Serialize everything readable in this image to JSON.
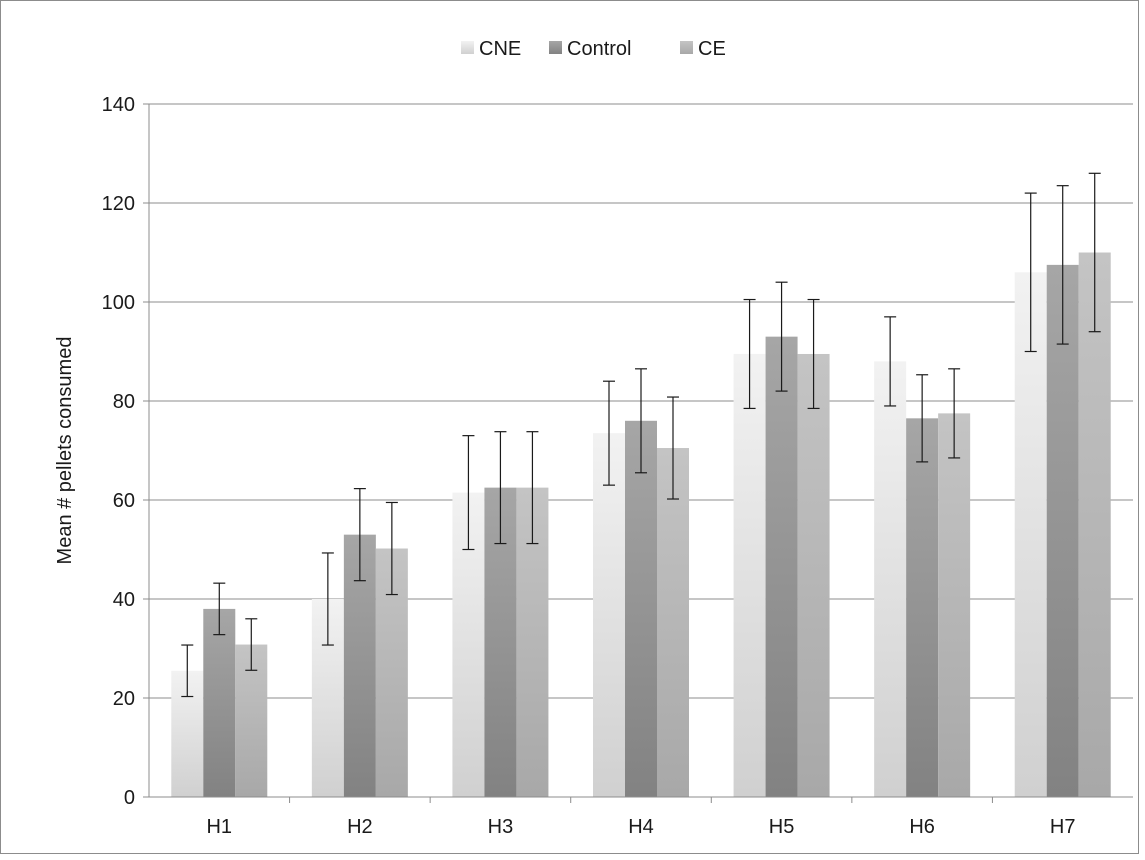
{
  "chart_data": {
    "type": "bar",
    "title": "",
    "xlabel": "",
    "ylabel": "Mean # pellets consumed",
    "ylim": [
      0,
      140
    ],
    "ytick_step": 20,
    "grid": true,
    "legend_position": "top-center",
    "categories": [
      "H1",
      "H2",
      "H3",
      "H4",
      "H5",
      "H6",
      "H7"
    ],
    "series": [
      {
        "name": "CNE",
        "color_top": "#f2f2f2",
        "color_bottom": "#d0d0d0",
        "values": [
          25.5,
          40,
          61.5,
          73.5,
          89.5,
          88,
          106
        ],
        "error": [
          5.2,
          9.3,
          11.5,
          10.5,
          11,
          9,
          16
        ]
      },
      {
        "name": "Control",
        "color_top": "#a6a6a6",
        "color_bottom": "#828282",
        "values": [
          38,
          53,
          62.5,
          76,
          93,
          76.5,
          107.5
        ],
        "error": [
          5.2,
          9.3,
          11.3,
          10.5,
          11,
          8.8,
          16
        ]
      },
      {
        "name": "CE",
        "color_top": "#c4c4c4",
        "color_bottom": "#a8a8a8",
        "values": [
          30.8,
          50.2,
          62.5,
          70.5,
          89.5,
          77.5,
          110
        ],
        "error": [
          5.2,
          9.3,
          11.3,
          10.3,
          11,
          9,
          16
        ]
      }
    ]
  }
}
